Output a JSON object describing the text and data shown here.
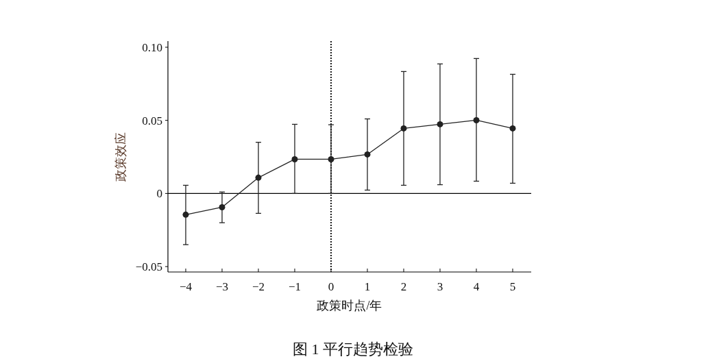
{
  "chart_data": {
    "type": "line",
    "xlabel": "政策时点/年",
    "ylabel": "政策效应",
    "x": [
      -4,
      -3,
      -2,
      -1,
      0,
      1,
      2,
      3,
      4,
      5
    ],
    "series": [
      {
        "color": "#222222",
        "values": [
          -0.0145,
          -0.0094,
          0.0108,
          0.0234,
          0.0234,
          0.0267,
          0.0445,
          0.0473,
          0.0501,
          0.0445
        ],
        "errors": [
          [
            -0.035,
            0.0056
          ],
          [
            -0.02,
            0.001
          ],
          [
            -0.0136,
            0.035
          ],
          [
            0,
            0.0473
          ],
          [
            0,
            0.047
          ],
          [
            0.0023,
            0.051
          ],
          [
            0.0056,
            0.0834
          ],
          [
            0.006,
            0.0886
          ],
          [
            0.0084,
            0.0923
          ],
          [
            0.007,
            0.0815
          ]
        ]
      }
    ],
    "xlim": [
      -4.49,
      5.51
    ],
    "ylim": [
      -0.0537,
      0.1042
    ],
    "xticks": [
      {
        "value": -4,
        "label": "−4"
      },
      {
        "value": -3,
        "label": "−3"
      },
      {
        "value": -2,
        "label": "−2"
      },
      {
        "value": -1,
        "label": "−1"
      },
      0,
      1,
      2,
      3,
      4,
      5
    ],
    "yticks": [
      {
        "value": -0.05,
        "label": "−0.05"
      },
      0,
      0.05,
      {
        "value": 0.1,
        "label": "0.10"
      }
    ],
    "ref_lines": [
      {
        "axis": "y",
        "value": 0,
        "color": "#000000",
        "line_style": "solid"
      },
      {
        "axis": "x",
        "value": 0,
        "color": "#000000",
        "line_style": "dotted"
      }
    ],
    "marker": "circle",
    "line_style": "solid",
    "grid": false,
    "annotations": [
      "图 1 平行趋势检验"
    ]
  }
}
